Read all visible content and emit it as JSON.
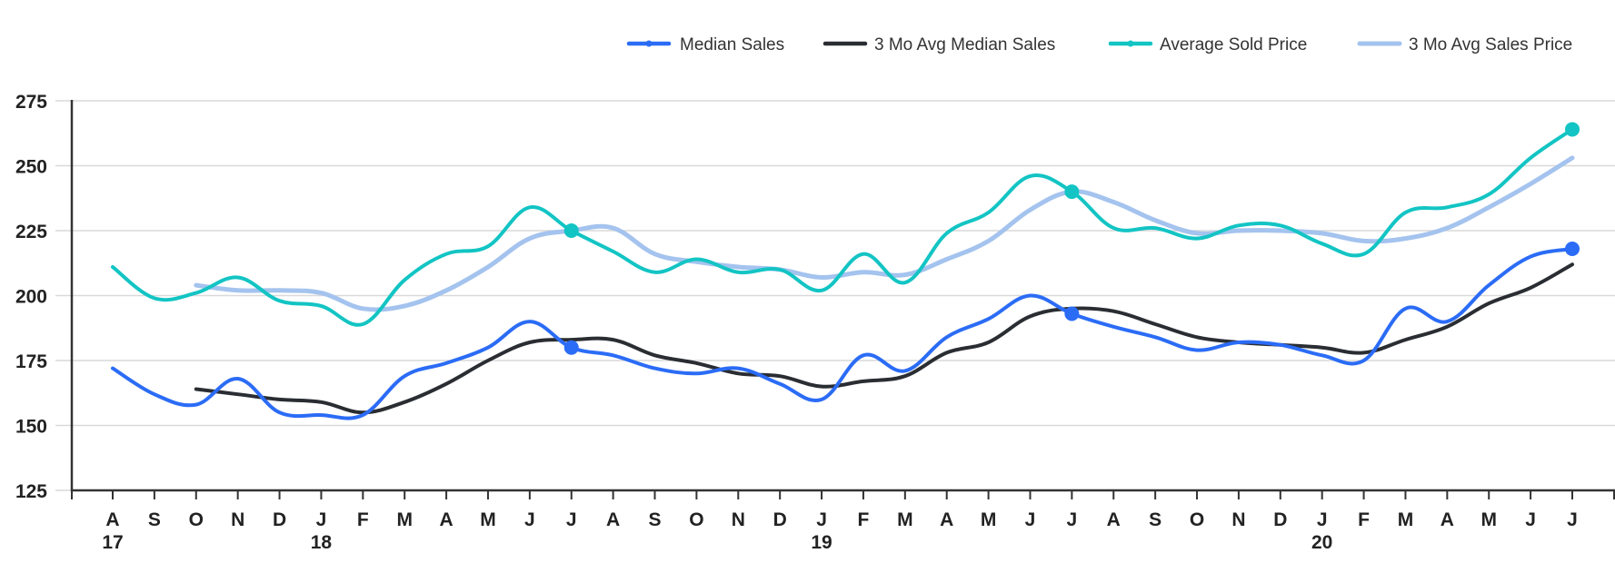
{
  "chart_data": {
    "type": "line",
    "title": "",
    "xlabel": "",
    "ylabel": "",
    "ylim": [
      125,
      275
    ],
    "yticks": [
      125,
      150,
      175,
      200,
      225,
      250,
      275
    ],
    "grid": true,
    "legend_position": "top-right",
    "x": [
      "Aug 2017",
      "Sep 2017",
      "Oct 2017",
      "Nov 2017",
      "Dec 2017",
      "Jan 2018",
      "Feb 2018",
      "Mar 2018",
      "Apr 2018",
      "May 2018",
      "Jun 2018",
      "Jul 2018",
      "Aug 2018",
      "Sep 2018",
      "Oct 2018",
      "Nov 2018",
      "Dec 2018",
      "Jan 2019",
      "Feb 2019",
      "Mar 2019",
      "Apr 2019",
      "May 2019",
      "Jun 2019",
      "Jul 2019",
      "Aug 2019",
      "Sep 2019",
      "Oct 2019",
      "Nov 2019",
      "Dec 2019",
      "Jan 2020",
      "Feb 2020",
      "Mar 2020",
      "Apr 2020",
      "May 2020",
      "Jun 2020",
      "Jul 2020"
    ],
    "x_tick_labels": [
      "A",
      "S",
      "O",
      "N",
      "D",
      "J",
      "F",
      "M",
      "A",
      "M",
      "J",
      "J",
      "A",
      "S",
      "O",
      "N",
      "D",
      "J",
      "F",
      "M",
      "A",
      "M",
      "J",
      "J",
      "A",
      "S",
      "O",
      "N",
      "D",
      "J",
      "F",
      "M",
      "A",
      "M",
      "J",
      "J"
    ],
    "x_year_labels": [
      {
        "index": 0,
        "label": "17"
      },
      {
        "index": 5,
        "label": "18"
      },
      {
        "index": 17,
        "label": "19"
      },
      {
        "index": 29,
        "label": "20"
      }
    ],
    "series": [
      {
        "name": "Median Sales",
        "color": "#2b6cf6",
        "marker": "dot",
        "values": [
          172,
          162,
          158,
          168,
          155,
          154,
          154,
          169,
          174,
          180,
          190,
          180,
          177,
          172,
          170,
          172,
          166,
          160,
          177,
          171,
          184,
          191,
          200,
          193,
          188,
          184,
          179,
          182,
          181,
          177,
          175,
          195,
          190,
          204,
          215,
          218
        ]
      },
      {
        "name": "3 Mo Avg Median Sales",
        "color": "#2a2e33",
        "marker": "none",
        "values": [
          null,
          null,
          164,
          162,
          160,
          159,
          155,
          159,
          166,
          175,
          182,
          183,
          183,
          177,
          174,
          170,
          169,
          165,
          167,
          169,
          178,
          182,
          192,
          195,
          194,
          189,
          184,
          182,
          181,
          180,
          178,
          183,
          188,
          197,
          203,
          212
        ]
      },
      {
        "name": "Average Sold Price",
        "color": "#13c4c4",
        "marker": "dot",
        "values": [
          211,
          199,
          201,
          207,
          198,
          196,
          189,
          206,
          216,
          219,
          234,
          225,
          217,
          209,
          214,
          209,
          210,
          202,
          216,
          205,
          224,
          232,
          246,
          240,
          226,
          226,
          222,
          227,
          227,
          220,
          216,
          232,
          234,
          239,
          253,
          264
        ]
      },
      {
        "name": "3 Mo Avg Sales Price",
        "color": "#a4c3ee",
        "marker": "none",
        "values": [
          null,
          null,
          204,
          202,
          202,
          201,
          195,
          196,
          202,
          211,
          222,
          225,
          226,
          216,
          213,
          211,
          210,
          207,
          209,
          208,
          214,
          221,
          233,
          240,
          236,
          229,
          224,
          225,
          225,
          224,
          221,
          222,
          226,
          234,
          243,
          253
        ]
      }
    ],
    "highlighted_points": [
      {
        "series": "Median Sales",
        "index": 11,
        "value": 180
      },
      {
        "series": "Median Sales",
        "index": 23,
        "value": 193
      },
      {
        "series": "Median Sales",
        "index": 35,
        "value": 218
      },
      {
        "series": "Average Sold Price",
        "index": 11,
        "value": 225
      },
      {
        "series": "Average Sold Price",
        "index": 23,
        "value": 240
      },
      {
        "series": "Average Sold Price",
        "index": 35,
        "value": 264
      }
    ]
  },
  "legend": [
    {
      "label": "Median Sales",
      "color": "#2b6cf6",
      "marker": "dot"
    },
    {
      "label": "3 Mo Avg Median Sales",
      "color": "#2a2e33",
      "marker": "none"
    },
    {
      "label": "Average Sold Price",
      "color": "#13c4c4",
      "marker": "dot"
    },
    {
      "label": "3 Mo Avg Sales Price",
      "color": "#a4c3ee",
      "marker": "none"
    }
  ]
}
